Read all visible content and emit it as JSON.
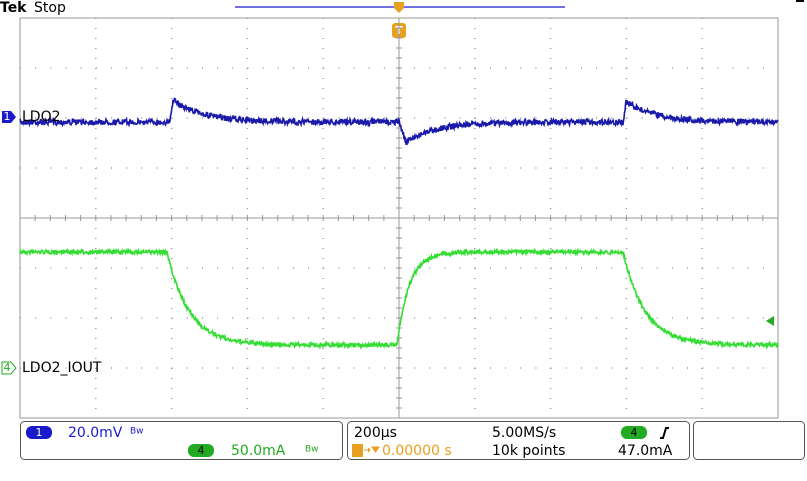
{
  "header": {
    "brand": "Tek",
    "status": "Stop"
  },
  "trigger_marker": "T",
  "channels": [
    {
      "number": "1",
      "label": "LDO2"
    },
    {
      "number": "4",
      "label": "LDO2_IOUT"
    }
  ],
  "status_bar": {
    "ch1_number": "1",
    "ch1_scale": "20.0mV",
    "ch1_bandwidth": "Bw",
    "ch4_number": "4",
    "ch4_scale": "50.0mA",
    "ch4_bandwidth": "Bw",
    "timebase": "200µs",
    "sample_rate": "5.00MS/s",
    "trigger_position": "0.00000 s",
    "record_length": "10k points",
    "trigger_source": "4",
    "trigger_level": "47.0mA"
  }
}
